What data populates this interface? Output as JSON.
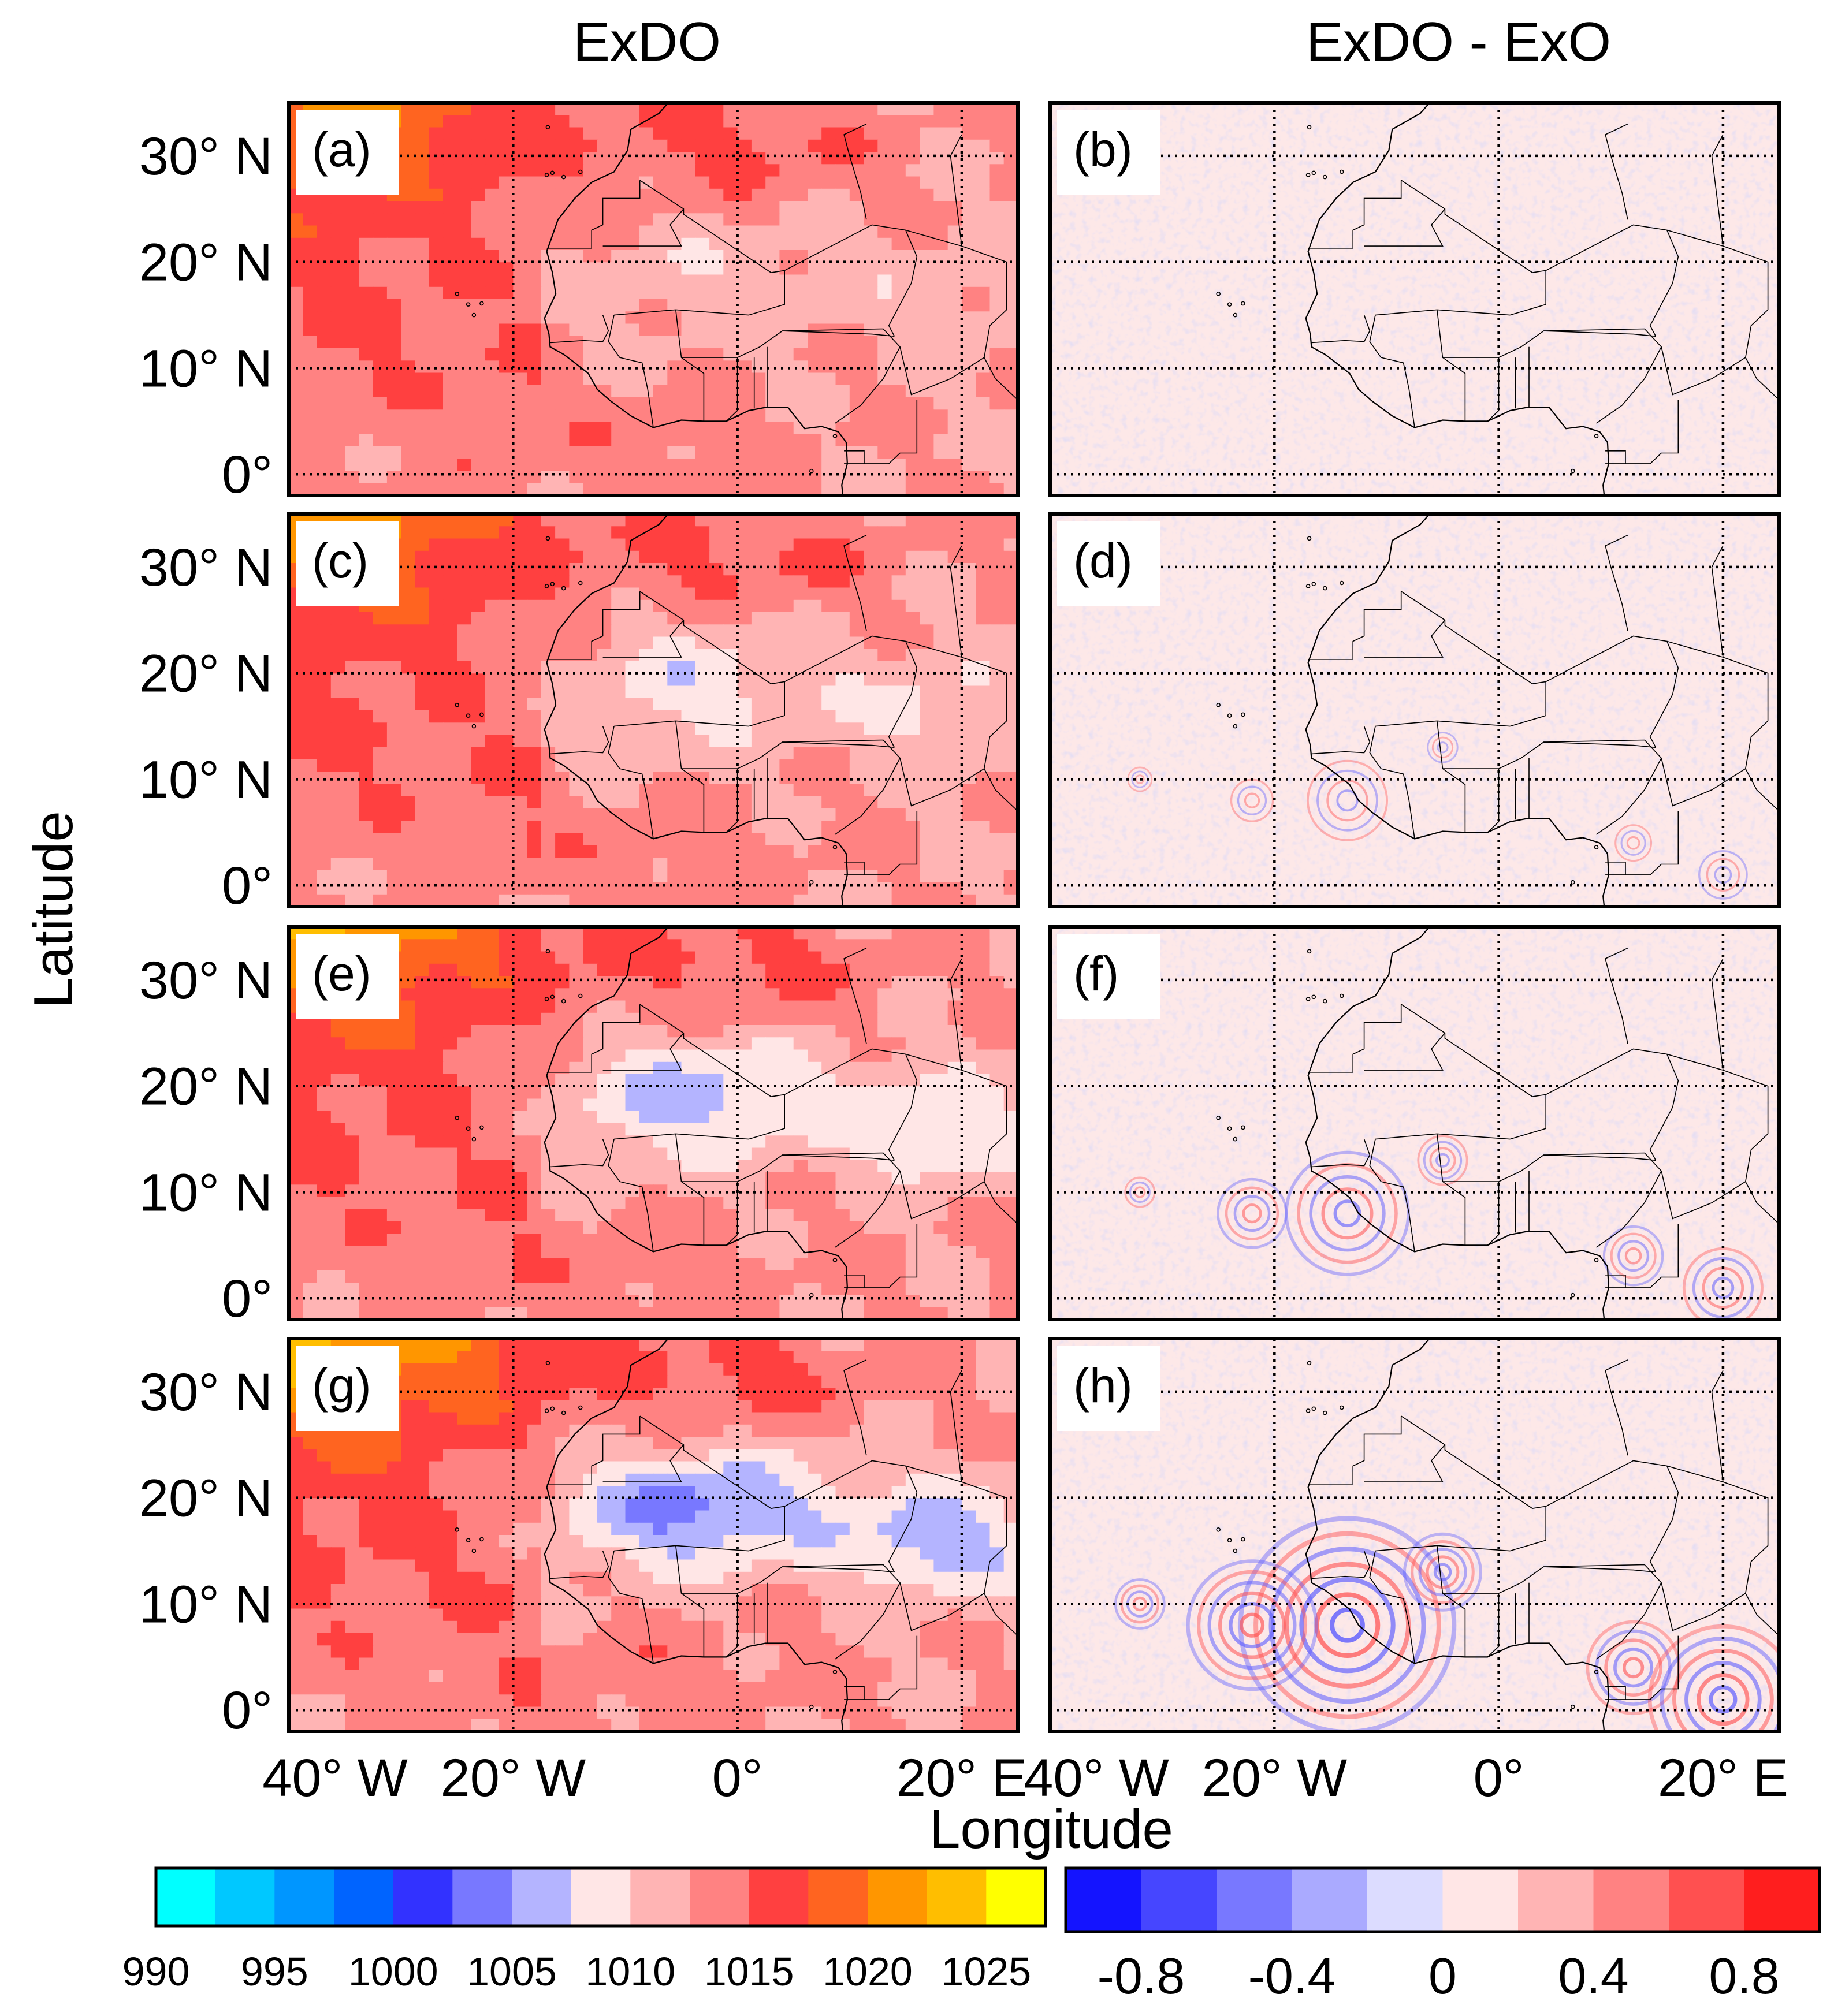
{
  "chart_data": {
    "type": "heatmap",
    "description_layout": "4 rows x 2 columns of filled-contour map panels over West Africa",
    "column_titles": [
      "ExDO",
      "ExDO - ExO"
    ],
    "xlabel": "Longitude",
    "ylabel": "Latitude",
    "lon_range": [
      -40,
      25
    ],
    "lat_range": [
      -2,
      35
    ],
    "lat_ticks": [
      {
        "value": 30,
        "label": "30° N"
      },
      {
        "value": 20,
        "label": "20° N"
      },
      {
        "value": 10,
        "label": "10° N"
      },
      {
        "value": 0,
        "label": "0°"
      }
    ],
    "lon_ticks": [
      {
        "value": -40,
        "label": "40° W"
      },
      {
        "value": -20,
        "label": "20° W"
      },
      {
        "value": 0,
        "label": "0°"
      },
      {
        "value": 20,
        "label": "20° E"
      }
    ],
    "grid": true,
    "panels": [
      {
        "label": "(a)",
        "row": 0,
        "col": 0,
        "field": "ExDO"
      },
      {
        "label": "(b)",
        "row": 0,
        "col": 1,
        "field": "ExDO - ExO",
        "anomaly": 0.0
      },
      {
        "label": "(c)",
        "row": 1,
        "col": 0,
        "field": "ExDO"
      },
      {
        "label": "(d)",
        "row": 1,
        "col": 1,
        "field": "ExDO - ExO",
        "anomaly": 0.3
      },
      {
        "label": "(e)",
        "row": 2,
        "col": 0,
        "field": "ExDO"
      },
      {
        "label": "(f)",
        "row": 2,
        "col": 1,
        "field": "ExDO - ExO",
        "anomaly": 0.6
      },
      {
        "label": "(g)",
        "row": 3,
        "col": 0,
        "field": "ExDO"
      },
      {
        "label": "(h)",
        "row": 3,
        "col": 1,
        "field": "ExDO - ExO",
        "anomaly": 1.0
      }
    ],
    "colorbar_pressure": {
      "min": 990,
      "max": 1027.5,
      "step": 2.5,
      "tick_labels": [
        "990",
        "995",
        "1000",
        "1005",
        "1010",
        "1015",
        "1020",
        "1025"
      ],
      "colors": [
        "#00ffff",
        "#00c8ff",
        "#0096ff",
        "#0064ff",
        "#3232ff",
        "#7878ff",
        "#b4b4ff",
        "#ffe6e6",
        "#ffb4b4",
        "#ff8282",
        "#ff4040",
        "#ff6420",
        "#ff9600",
        "#ffbe00",
        "#ffff00"
      ]
    },
    "colorbar_difference": {
      "min": -1.0,
      "max": 1.0,
      "step": 0.2,
      "tick_labels": [
        "-0.8",
        "-0.4",
        "0",
        "0.4",
        "0.8"
      ],
      "colors": [
        "#1414ff",
        "#4646ff",
        "#7878ff",
        "#aaaaff",
        "#dcdcff",
        "#ffe6e6",
        "#ffb4b4",
        "#ff8282",
        "#ff5050",
        "#ff1e1e"
      ]
    }
  }
}
